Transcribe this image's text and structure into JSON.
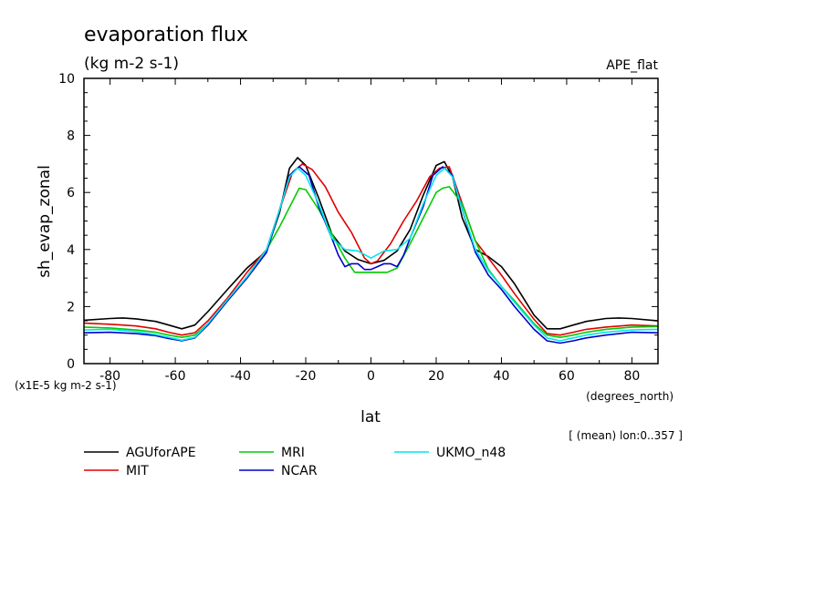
{
  "chart_data": {
    "type": "line",
    "title": "evaporation flux",
    "subtitle": "(kg m-2 s-1)",
    "experiment_label": "APE_flat",
    "ylabel": "sh_evap_zonal",
    "xlabel": "lat",
    "x_units": "(degrees_north)",
    "y_scale_note": "(x1E-5 kg m-2 s-1)",
    "averaging_note": "[ (mean) lon:0..357 ]",
    "xlim": [
      -88,
      88
    ],
    "ylim": [
      0,
      10
    ],
    "x_ticks": [
      -80,
      -60,
      -40,
      -20,
      0,
      20,
      40,
      60,
      80
    ],
    "y_ticks": [
      0,
      2,
      4,
      6,
      8,
      10
    ],
    "x_tick_labels": [
      "-80",
      "-60",
      "-40",
      "-20",
      "0",
      "20",
      "40",
      "60",
      "80"
    ],
    "y_tick_labels": [
      "0",
      "2",
      "4",
      "6",
      "8",
      "10"
    ],
    "grid": false,
    "legend_position": "bottom",
    "series": [
      {
        "name": "AGUforAPE",
        "color": "#000000",
        "x": [
          -88,
          -80,
          -76,
          -72,
          -66,
          -62,
          -58,
          -54,
          -50,
          -44,
          -38,
          -32,
          -28,
          -25,
          -22.5,
          -20,
          -16,
          -12,
          -8,
          -4,
          0,
          4,
          8,
          12,
          16,
          20,
          22.5,
          25,
          28,
          32,
          36,
          40,
          44,
          50,
          54,
          58,
          62,
          66,
          72,
          76,
          80,
          88
        ],
        "values": [
          1.52,
          1.58,
          1.6,
          1.57,
          1.48,
          1.35,
          1.22,
          1.35,
          1.82,
          2.6,
          3.35,
          3.95,
          5.3,
          6.85,
          7.22,
          6.95,
          5.8,
          4.55,
          3.95,
          3.65,
          3.5,
          3.62,
          3.95,
          4.7,
          5.9,
          6.95,
          7.08,
          6.55,
          5.1,
          4.0,
          3.75,
          3.4,
          2.8,
          1.7,
          1.22,
          1.22,
          1.35,
          1.48,
          1.58,
          1.6,
          1.58,
          1.5
        ]
      },
      {
        "name": "MIT",
        "color": "#e00000",
        "x": [
          -88,
          -80,
          -72,
          -66,
          -62,
          -58,
          -54,
          -50,
          -44,
          -38,
          -32,
          -28,
          -24,
          -21,
          -18,
          -14,
          -10,
          -6,
          -2,
          0,
          2,
          6,
          10,
          14,
          18,
          21,
          24,
          28,
          32,
          36,
          40,
          44,
          50,
          54,
          58,
          62,
          66,
          72,
          80,
          88
        ],
        "values": [
          1.42,
          1.38,
          1.32,
          1.22,
          1.1,
          1.0,
          1.08,
          1.5,
          2.3,
          3.2,
          4.0,
          5.4,
          6.72,
          7.0,
          6.8,
          6.2,
          5.3,
          4.6,
          3.7,
          3.5,
          3.6,
          4.2,
          5.0,
          5.7,
          6.55,
          6.85,
          6.9,
          5.6,
          4.3,
          3.7,
          3.1,
          2.45,
          1.55,
          1.05,
          1.0,
          1.1,
          1.2,
          1.28,
          1.35,
          1.32
        ]
      },
      {
        "name": "MRI",
        "color": "#00cc00",
        "x": [
          -88,
          -80,
          -72,
          -66,
          -62,
          -58,
          -54,
          -50,
          -44,
          -38,
          -32,
          -28,
          -24,
          -22,
          -20,
          -16,
          -12,
          -8,
          -5,
          0,
          5,
          8,
          12,
          16,
          20,
          22,
          24,
          28,
          32,
          36,
          40,
          44,
          50,
          54,
          58,
          62,
          66,
          72,
          80,
          88
        ],
        "values": [
          1.28,
          1.25,
          1.18,
          1.1,
          1.0,
          0.92,
          1.0,
          1.4,
          2.2,
          3.05,
          4.0,
          4.8,
          5.7,
          6.15,
          6.1,
          5.4,
          4.55,
          3.7,
          3.2,
          3.2,
          3.2,
          3.35,
          4.2,
          5.1,
          6.0,
          6.15,
          6.2,
          5.6,
          4.3,
          3.3,
          2.7,
          2.2,
          1.4,
          1.0,
          0.92,
          1.0,
          1.1,
          1.2,
          1.28,
          1.3
        ]
      },
      {
        "name": "NCAR",
        "color": "#0000cc",
        "x": [
          -88,
          -80,
          -72,
          -66,
          -62,
          -58,
          -54,
          -50,
          -44,
          -38,
          -32,
          -28,
          -25,
          -22,
          -19,
          -16,
          -12,
          -10,
          -8,
          -6,
          -4,
          -2,
          0,
          2,
          4,
          6,
          8,
          10,
          12,
          16,
          19,
          22,
          25,
          28,
          32,
          36,
          40,
          44,
          50,
          54,
          58,
          62,
          66,
          72,
          80,
          88
        ],
        "values": [
          1.08,
          1.1,
          1.05,
          0.98,
          0.88,
          0.8,
          0.9,
          1.35,
          2.2,
          3.0,
          3.9,
          5.4,
          6.6,
          6.9,
          6.6,
          5.5,
          4.4,
          3.8,
          3.4,
          3.5,
          3.5,
          3.3,
          3.3,
          3.4,
          3.5,
          3.5,
          3.4,
          3.8,
          4.4,
          5.5,
          6.6,
          6.9,
          6.6,
          5.4,
          3.9,
          3.1,
          2.6,
          2.0,
          1.2,
          0.8,
          0.72,
          0.8,
          0.9,
          1.0,
          1.1,
          1.08
        ]
      },
      {
        "name": "UKMO_n48",
        "color": "#00e5ee",
        "x": [
          -88,
          -80,
          -72,
          -66,
          -62,
          -58,
          -54,
          -50,
          -44,
          -38,
          -32,
          -28,
          -25,
          -22.5,
          -20,
          -16,
          -12,
          -8,
          -4,
          0,
          4,
          8,
          12,
          16,
          20,
          22.5,
          25,
          28,
          32,
          36,
          40,
          44,
          50,
          54,
          58,
          62,
          66,
          72,
          80,
          88
        ],
        "values": [
          1.18,
          1.2,
          1.12,
          1.02,
          0.92,
          0.82,
          0.92,
          1.4,
          2.25,
          3.05,
          4.0,
          5.4,
          6.55,
          6.85,
          6.6,
          5.6,
          4.4,
          4.0,
          3.95,
          3.7,
          3.95,
          4.0,
          4.4,
          5.6,
          6.6,
          6.85,
          6.55,
          5.4,
          4.0,
          3.25,
          2.7,
          2.15,
          1.35,
          0.9,
          0.8,
          0.9,
          1.0,
          1.1,
          1.18,
          1.2
        ]
      }
    ]
  }
}
